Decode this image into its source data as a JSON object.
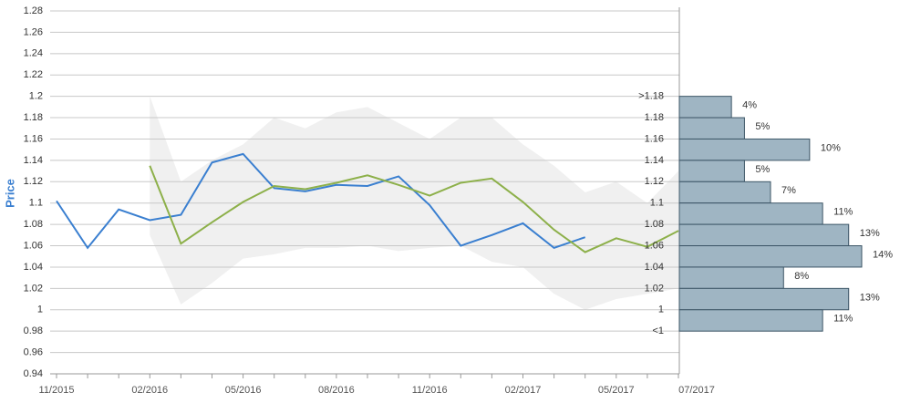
{
  "chart_data": {
    "type": "line",
    "y_label": "Price",
    "categories": [
      "11/2015",
      null,
      null,
      "02/2016",
      null,
      null,
      "05/2016",
      null,
      null,
      "08/2016",
      null,
      null,
      "11/2016",
      null,
      null,
      "02/2017",
      null,
      null,
      "05/2017",
      null,
      "07/2017"
    ],
    "series": [
      {
        "color": "#3a7fd0",
        "values": [
          1.102,
          1.058,
          1.094,
          1.084,
          1.089,
          1.138,
          1.146,
          1.114,
          1.111,
          1.117,
          1.116,
          1.125,
          1.098,
          1.06,
          1.07,
          1.081,
          1.058,
          1.068,
          null,
          null,
          null
        ]
      },
      {
        "color": "#8db04a",
        "values": [
          null,
          null,
          null,
          1.135,
          1.062,
          1.082,
          1.101,
          1.116,
          1.113,
          1.119,
          1.126,
          1.117,
          1.107,
          1.119,
          1.123,
          1.101,
          1.075,
          1.054,
          1.067,
          1.059,
          1.074
        ]
      }
    ],
    "band": {
      "color": "#f0f0f0",
      "upper": [
        null,
        null,
        null,
        1.2,
        1.12,
        1.14,
        1.155,
        1.18,
        1.17,
        1.185,
        1.19,
        1.175,
        1.16,
        1.18,
        1.18,
        1.155,
        1.135,
        1.11,
        1.12,
        1.1,
        1.13
      ],
      "lower": [
        null,
        null,
        null,
        1.07,
        1.005,
        1.025,
        1.048,
        1.052,
        1.058,
        1.058,
        1.06,
        1.055,
        1.058,
        1.06,
        1.045,
        1.04,
        1.015,
        1.0,
        1.01,
        1.015,
        1.02
      ]
    },
    "ylim": [
      0.94,
      1.28
    ],
    "yticks": [
      0.94,
      0.96,
      0.98,
      1,
      1.02,
      1.04,
      1.06,
      1.08,
      1.1,
      1.12,
      1.14,
      1.16,
      1.18,
      1.2,
      1.22,
      1.24,
      1.26,
      1.28
    ],
    "grid": true,
    "histogram": {
      "type": "bar",
      "color": "#9fb5c3",
      "edge_color": "#3c5566",
      "bins": [
        {
          "value": 1.2,
          "label": ">1.18"
        },
        1.18,
        1.16,
        1.14,
        1.12,
        1.1,
        1.08,
        1.06,
        1.04,
        1.02,
        1,
        {
          "value": 0.98,
          "label": "<1"
        }
      ],
      "values": [
        4,
        5,
        10,
        5,
        7,
        11,
        13,
        14,
        8,
        13,
        11
      ],
      "value_labels": [
        "4%",
        "5%",
        "10%",
        "5%",
        "7%",
        "11%",
        "13%",
        "14%",
        "8%",
        "13%",
        "11%"
      ]
    }
  }
}
